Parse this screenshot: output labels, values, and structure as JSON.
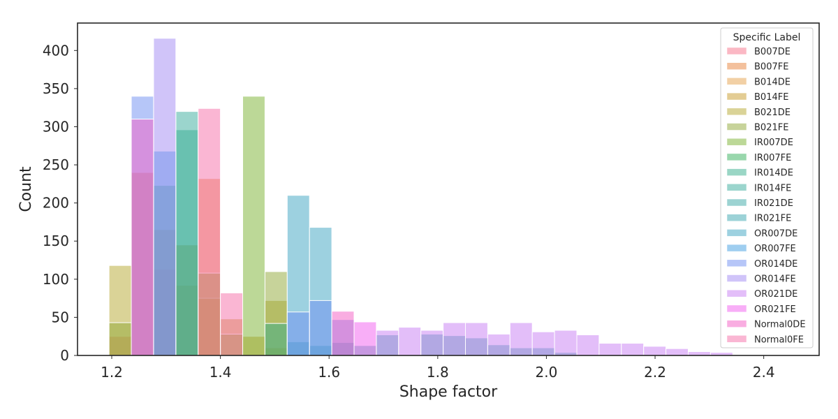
{
  "chart_data": {
    "type": "bar",
    "title": "",
    "xlabel": "Shape factor",
    "ylabel": "Count",
    "xlim": [
      1.137,
      2.502
    ],
    "ylim": [
      0,
      436
    ],
    "x_ticks": [
      1.2,
      1.4,
      1.6,
      1.8,
      2.0,
      2.2,
      2.4
    ],
    "y_ticks": [
      0,
      50,
      100,
      150,
      200,
      250,
      300,
      350,
      400
    ],
    "bin_edges": [
      1.195,
      1.236,
      1.277,
      1.318,
      1.359,
      1.4,
      1.441,
      1.482,
      1.523,
      1.564,
      1.605,
      1.646,
      1.687,
      1.728,
      1.769,
      1.81,
      1.851,
      1.892,
      1.933,
      1.974,
      2.015,
      2.056,
      2.097,
      2.138,
      2.179,
      2.22,
      2.261,
      2.302,
      2.343
    ],
    "grid": false,
    "legend": {
      "title": "Specific Label",
      "position": "top-right"
    },
    "bar_alpha": 0.5,
    "series": [
      {
        "name": "B007DE",
        "color": "#f77189",
        "values": [
          25,
          0,
          113,
          0,
          0,
          0,
          0,
          0,
          0,
          0,
          0,
          0,
          0,
          0,
          0,
          0,
          0,
          0,
          0,
          0,
          0,
          0,
          0,
          0,
          0,
          0,
          0,
          0
        ]
      },
      {
        "name": "B007FE",
        "color": "#e8823a",
        "values": [
          0,
          240,
          0,
          0,
          232,
          0,
          0,
          0,
          0,
          0,
          0,
          0,
          0,
          0,
          0,
          0,
          0,
          0,
          0,
          0,
          0,
          0,
          0,
          0,
          0,
          0,
          0,
          0
        ]
      },
      {
        "name": "B014DE",
        "color": "#e5a14b",
        "values": [
          0,
          0,
          0,
          92,
          0,
          0,
          0,
          0,
          0,
          0,
          0,
          0,
          0,
          0,
          0,
          0,
          0,
          0,
          0,
          0,
          0,
          0,
          0,
          0,
          0,
          0,
          0,
          0
        ]
      },
      {
        "name": "B014FE",
        "color": "#c79a27",
        "values": [
          0,
          0,
          165,
          145,
          75,
          48,
          25,
          10,
          0,
          0,
          0,
          0,
          0,
          0,
          0,
          0,
          0,
          0,
          0,
          0,
          0,
          0,
          0,
          0,
          0,
          0,
          0,
          0
        ]
      },
      {
        "name": "B021DE",
        "color": "#b5a82f",
        "values": [
          118,
          0,
          0,
          0,
          0,
          0,
          0,
          72,
          0,
          0,
          0,
          0,
          0,
          0,
          0,
          0,
          0,
          0,
          0,
          0,
          0,
          0,
          0,
          0,
          0,
          0,
          0,
          0
        ]
      },
      {
        "name": "B021FE",
        "color": "#8fa835",
        "values": [
          43,
          0,
          0,
          0,
          108,
          28,
          0,
          110,
          0,
          0,
          0,
          0,
          0,
          0,
          0,
          0,
          0,
          0,
          0,
          0,
          0,
          0,
          0,
          0,
          0,
          0,
          0,
          0
        ]
      },
      {
        "name": "IR007DE",
        "color": "#79b22f",
        "values": [
          0,
          0,
          0,
          0,
          0,
          0,
          340,
          0,
          0,
          0,
          0,
          0,
          0,
          0,
          0,
          0,
          0,
          0,
          0,
          0,
          0,
          0,
          0,
          0,
          0,
          0,
          0,
          0
        ]
      },
      {
        "name": "IR007FE",
        "color": "#33b059",
        "values": [
          0,
          0,
          223,
          0,
          0,
          0,
          0,
          0,
          0,
          0,
          0,
          0,
          0,
          0,
          0,
          0,
          0,
          0,
          0,
          0,
          0,
          0,
          0,
          0,
          0,
          0,
          0,
          0
        ]
      },
      {
        "name": "IR014DE",
        "color": "#36ad8b",
        "values": [
          0,
          0,
          0,
          296,
          0,
          0,
          0,
          42,
          0,
          0,
          0,
          0,
          0,
          0,
          0,
          0,
          0,
          0,
          0,
          0,
          0,
          0,
          0,
          0,
          0,
          0,
          0,
          0
        ]
      },
      {
        "name": "IR014FE",
        "color": "#38ab9c",
        "values": [
          0,
          0,
          0,
          320,
          0,
          0,
          0,
          0,
          0,
          0,
          0,
          0,
          0,
          0,
          0,
          0,
          0,
          0,
          0,
          0,
          0,
          0,
          0,
          0,
          0,
          0,
          0,
          0
        ]
      },
      {
        "name": "IR021DE",
        "color": "#39a7a6",
        "values": [
          0,
          0,
          0,
          0,
          0,
          0,
          0,
          0,
          18,
          13,
          17,
          13,
          27,
          0,
          28,
          26,
          23,
          14,
          10,
          0,
          4,
          0,
          0,
          0,
          0,
          0,
          0,
          0
        ]
      },
      {
        "name": "IR021FE",
        "color": "#3aa5b0",
        "values": [
          0,
          0,
          0,
          0,
          0,
          0,
          0,
          0,
          0,
          0,
          0,
          0,
          0,
          0,
          0,
          0,
          0,
          0,
          0,
          10,
          0,
          0,
          0,
          0,
          0,
          0,
          0,
          0
        ]
      },
      {
        "name": "OR007DE",
        "color": "#3ba3c2",
        "values": [
          0,
          0,
          0,
          0,
          0,
          0,
          0,
          0,
          210,
          168,
          0,
          0,
          0,
          0,
          0,
          0,
          0,
          0,
          0,
          0,
          0,
          0,
          0,
          0,
          0,
          0,
          0,
          0
        ]
      },
      {
        "name": "OR007FE",
        "color": "#3f9ee1",
        "values": [
          0,
          0,
          268,
          0,
          0,
          0,
          0,
          0,
          0,
          0,
          0,
          0,
          0,
          0,
          0,
          0,
          0,
          0,
          0,
          0,
          0,
          0,
          0,
          0,
          0,
          0,
          0,
          0
        ]
      },
      {
        "name": "OR014DE",
        "color": "#6e8ef2",
        "values": [
          0,
          340,
          0,
          0,
          0,
          0,
          0,
          0,
          57,
          72,
          47,
          0,
          0,
          0,
          0,
          0,
          0,
          0,
          0,
          0,
          0,
          0,
          0,
          0,
          0,
          0,
          0,
          0
        ]
      },
      {
        "name": "OR014FE",
        "color": "#a28af3",
        "values": [
          0,
          0,
          416,
          0,
          0,
          0,
          0,
          0,
          0,
          0,
          0,
          0,
          0,
          0,
          0,
          0,
          0,
          0,
          0,
          0,
          0,
          0,
          0,
          0,
          0,
          0,
          0,
          0
        ]
      },
      {
        "name": "OR021DE",
        "color": "#c77ef3",
        "values": [
          0,
          0,
          0,
          0,
          0,
          0,
          0,
          0,
          0,
          0,
          0,
          0,
          33,
          37,
          33,
          43,
          43,
          28,
          43,
          31,
          33,
          27,
          16,
          16,
          12,
          9,
          5,
          4
        ]
      },
      {
        "name": "OR021FE",
        "color": "#f25ef0",
        "values": [
          0,
          0,
          0,
          0,
          0,
          0,
          0,
          0,
          0,
          0,
          0,
          44,
          0,
          0,
          0,
          0,
          0,
          0,
          0,
          0,
          0,
          0,
          0,
          0,
          0,
          0,
          0,
          0
        ]
      },
      {
        "name": "Normal0DE",
        "color": "#f45cc4",
        "values": [
          0,
          310,
          0,
          0,
          0,
          0,
          0,
          0,
          0,
          0,
          58,
          0,
          0,
          0,
          0,
          0,
          0,
          0,
          0,
          0,
          0,
          0,
          0,
          0,
          0,
          0,
          0,
          0
        ]
      },
      {
        "name": "Normal0FE",
        "color": "#f56ea8",
        "values": [
          0,
          0,
          0,
          0,
          324,
          82,
          0,
          0,
          0,
          0,
          0,
          0,
          0,
          0,
          0,
          0,
          0,
          0,
          0,
          0,
          0,
          0,
          0,
          0,
          0,
          0,
          0,
          0
        ]
      }
    ]
  }
}
